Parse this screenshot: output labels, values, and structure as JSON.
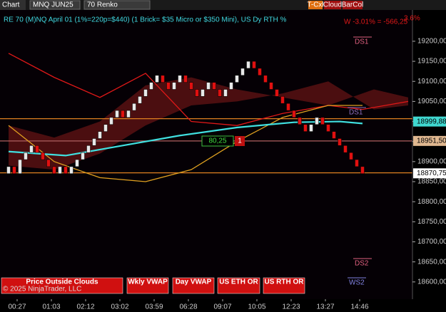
{
  "toolbar": {
    "tab": "Chart",
    "instrument": "MNQ JUN25",
    "period": "70 Renko",
    "buttons": [
      "T-Cxl",
      "Cloud",
      "BarCol"
    ]
  },
  "chart_data": {
    "type": "renko",
    "title": "RE 70 (M)NQ April 01 (1%=220p=$440) (1 Brick= $35 Micro or $350 Mini), US Dy RTH %",
    "brick_size": 17.5,
    "up_color": "#e8e8e8",
    "down_color": "#e01010",
    "values": [
      18887.5,
      18870,
      18905,
      18922.5,
      18940,
      18922.5,
      18905,
      18887.5,
      18870,
      18887.5,
      18870,
      18887.5,
      18905,
      18922.5,
      18940,
      18957.5,
      18975,
      18992.5,
      19010,
      19027.5,
      19010,
      19027.5,
      19045,
      19062.5,
      19080,
      19097.5,
      19115,
      19097.5,
      19080,
      19097.5,
      19115,
      19097.5,
      19080,
      19062.5,
      19080,
      19097.5,
      19080,
      19062.5,
      19080,
      19097.5,
      19115,
      19132.5,
      19150,
      19132.5,
      19115,
      19097.5,
      19080,
      19062.5,
      19045,
      19027.5,
      19010,
      18992.5,
      18975,
      18992.5,
      19010,
      18992.5,
      18975,
      18957.5,
      18940,
      18922.5,
      18905,
      18887.5,
      18870
    ],
    "xlim": [
      -1.5,
      70.75
    ],
    "ylim": [
      18557,
      19278
    ],
    "yticks": [
      {
        "value": 19200,
        "label": "19200,00"
      },
      {
        "value": 19150,
        "label": "19150,00"
      },
      {
        "value": 19100,
        "label": "19100,00"
      },
      {
        "value": 19050,
        "label": "19050,00"
      },
      {
        "value": 19000,
        "label": "19000,00"
      },
      {
        "value": 18950,
        "label": "18950,00"
      },
      {
        "value": 18900,
        "label": "18900,00"
      },
      {
        "value": 18850,
        "label": "18850,00"
      },
      {
        "value": 18800,
        "label": "18800,00"
      },
      {
        "value": 18750,
        "label": "18750,00"
      },
      {
        "value": 18700,
        "label": "18700,00"
      },
      {
        "value": 18650,
        "label": "18650,00"
      },
      {
        "value": 18600,
        "label": "18600,00"
      }
    ],
    "xticks": [
      {
        "value": 1.5,
        "label": "00:27"
      },
      {
        "value": 7.5,
        "label": "01:03"
      },
      {
        "value": 13.5,
        "label": "02:12"
      },
      {
        "value": 19.5,
        "label": "03:02"
      },
      {
        "value": 25.5,
        "label": "03:59"
      },
      {
        "value": 31.5,
        "label": "06:28"
      },
      {
        "value": 37.5,
        "label": "09:07"
      },
      {
        "value": 43.5,
        "label": "10:05"
      },
      {
        "value": 49.5,
        "label": "12:23"
      },
      {
        "value": 55.5,
        "label": "13:27"
      },
      {
        "value": 61.5,
        "label": "14:46"
      }
    ],
    "cloud": {
      "color": "#7a1818",
      "x": [
        0,
        8,
        16,
        24,
        32,
        40,
        48,
        56,
        64,
        70
      ],
      "a": [
        18990,
        18960,
        19000,
        19090,
        19110,
        19080,
        19060,
        19040,
        19080,
        19060
      ],
      "b": [
        18890,
        18880,
        18920,
        18990,
        19040,
        19050,
        19070,
        19100,
        19030,
        19040
      ]
    },
    "series": [
      {
        "color": "#e01818",
        "x": [
          0,
          8,
          16,
          24,
          32,
          40,
          48,
          56,
          62,
          70
        ],
        "values": [
          19170,
          19110,
          19060,
          19120,
          19000,
          18990,
          19020,
          19040,
          19030,
          19050
        ]
      },
      {
        "color": "#e0a020",
        "x": [
          0,
          8,
          16,
          24,
          32,
          40,
          48,
          56,
          62
        ],
        "values": [
          18990,
          18900,
          18860,
          18850,
          18880,
          18950,
          19010,
          19040,
          19040
        ]
      },
      {
        "color": "#40e0e0",
        "x": [
          0,
          10,
          20,
          30,
          40,
          50,
          58,
          62
        ],
        "values": [
          18925,
          18915,
          18940,
          18965,
          18985,
          18998,
          19000,
          18995
        ]
      }
    ],
    "hlines": [
      {
        "value": 19007,
        "color": "#e08020"
      },
      {
        "value": 18872,
        "color": "#e08020"
      },
      {
        "value": 18951.5,
        "color": "#b06060"
      }
    ],
    "price_labels": [
      {
        "value": 18999.88,
        "label": "18999,88",
        "color": "#40d8d0"
      },
      {
        "value": 18951.5,
        "label": "18951,50",
        "color": "#e0b890"
      },
      {
        "value": 18870.75,
        "label": "18870,75",
        "color": "#ffffff"
      }
    ],
    "annotations": [
      "DS1",
      "DS1",
      "DS2",
      "WS2",
      "W -3.01% = -566,25",
      "3.6%"
    ],
    "box_value": "80,25",
    "box_count": "1",
    "buttons": [
      "Price Outside Clouds",
      "Wkly VWAP",
      "Day VWAP",
      "US ETH OR",
      "US RTH OR"
    ],
    "copyright": "© 2025 NinjaTrader, LLC"
  }
}
